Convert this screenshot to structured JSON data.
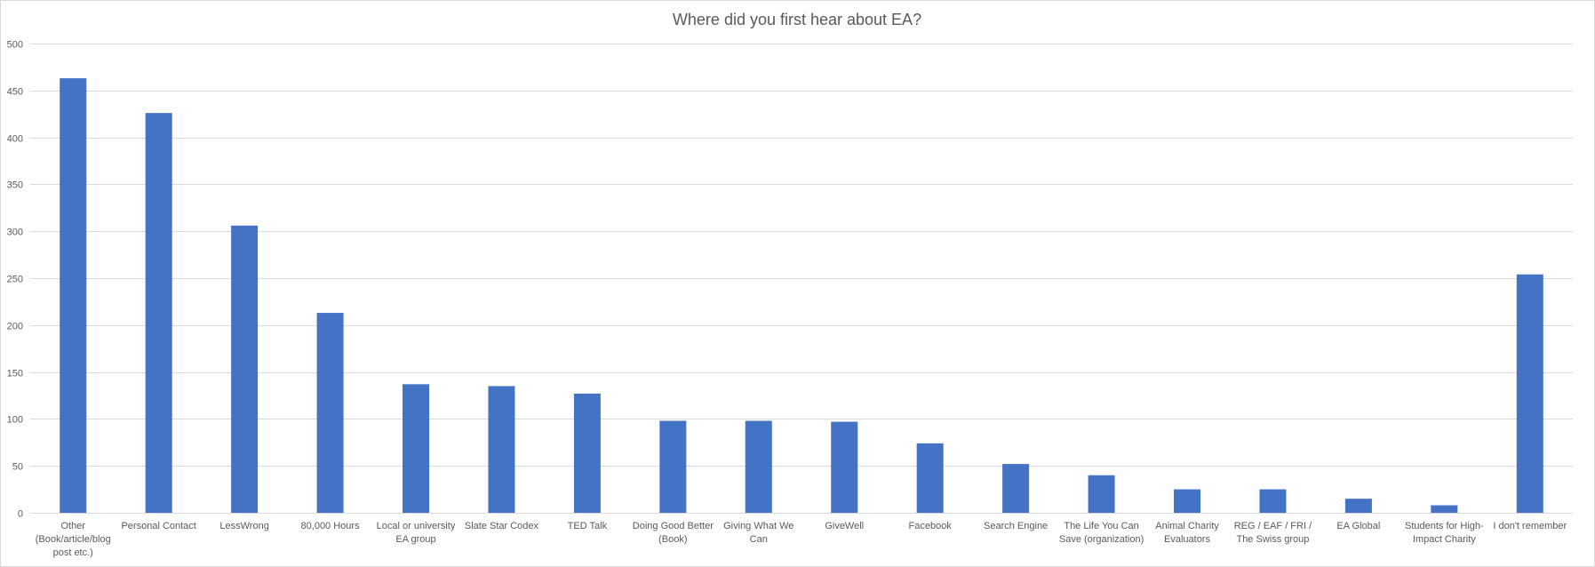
{
  "chart_data": {
    "type": "bar",
    "title": "Where did you first hear about EA?",
    "xlabel": "",
    "ylabel": "",
    "ylim": [
      0,
      500
    ],
    "yticks": [
      0,
      50,
      100,
      150,
      200,
      250,
      300,
      350,
      400,
      450,
      500
    ],
    "grid": true,
    "legend": "none",
    "bar_color": "#4472c4",
    "categories": [
      [
        "Other",
        "(Book/article/blog",
        "post etc.)"
      ],
      [
        "Personal Contact"
      ],
      [
        "LessWrong"
      ],
      [
        "80,000 Hours"
      ],
      [
        "Local or university",
        "EA group"
      ],
      [
        "Slate Star Codex"
      ],
      [
        "TED Talk"
      ],
      [
        "Doing Good Better",
        "(Book)"
      ],
      [
        "Giving What We",
        "Can"
      ],
      [
        "GiveWell"
      ],
      [
        "Facebook"
      ],
      [
        "Search Engine"
      ],
      [
        "The Life You Can",
        "Save (organization)"
      ],
      [
        "Animal Charity",
        "Evaluators"
      ],
      [
        "REG / EAF / FRI /",
        "The Swiss group"
      ],
      [
        "EA Global"
      ],
      [
        "Students for High-",
        "Impact Charity"
      ],
      [
        "I don't remember"
      ]
    ],
    "values": [
      463,
      426,
      306,
      213,
      137,
      135,
      127,
      98,
      98,
      97,
      74,
      52,
      40,
      25,
      25,
      15,
      8,
      254
    ]
  }
}
